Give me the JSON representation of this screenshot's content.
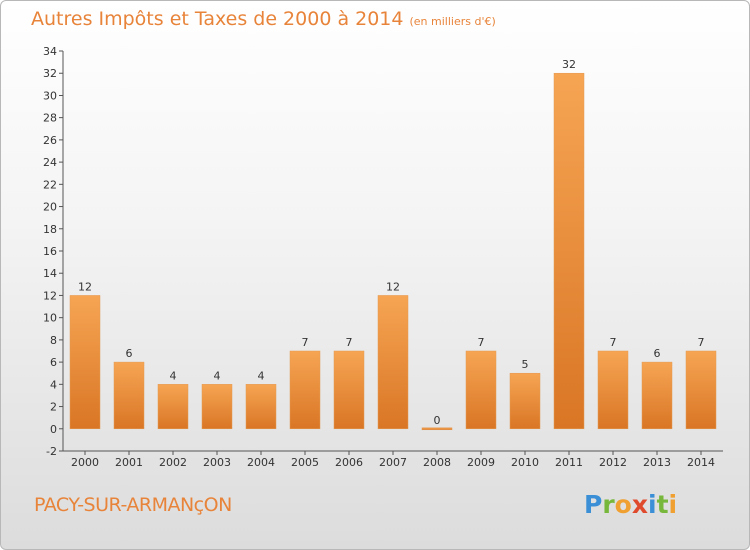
{
  "header": {
    "title": "Autres Impôts et Taxes de 2000 à 2014",
    "unit": "(en milliers d'€)"
  },
  "footer": {
    "commune": "PACY-SUR-ARMANçON",
    "logo": "Proxiti"
  },
  "colors": {
    "accent": "#e8843a",
    "bar_light": "#f6a553",
    "bar_dark": "#d97625"
  },
  "chart_data": {
    "type": "bar",
    "categories": [
      "2000",
      "2001",
      "2002",
      "2003",
      "2004",
      "2005",
      "2006",
      "2007",
      "2008",
      "2009",
      "2010",
      "2011",
      "2012",
      "2013",
      "2014"
    ],
    "values": [
      12,
      6,
      4,
      4,
      4,
      7,
      7,
      12,
      0,
      7,
      5,
      32,
      7,
      6,
      7
    ],
    "ylim": [
      -2,
      34
    ],
    "yticks": [
      -2,
      0,
      2,
      4,
      6,
      8,
      10,
      12,
      14,
      16,
      18,
      20,
      22,
      24,
      26,
      28,
      30,
      32,
      34
    ],
    "grid": false,
    "xlabel": "",
    "ylabel": ""
  }
}
